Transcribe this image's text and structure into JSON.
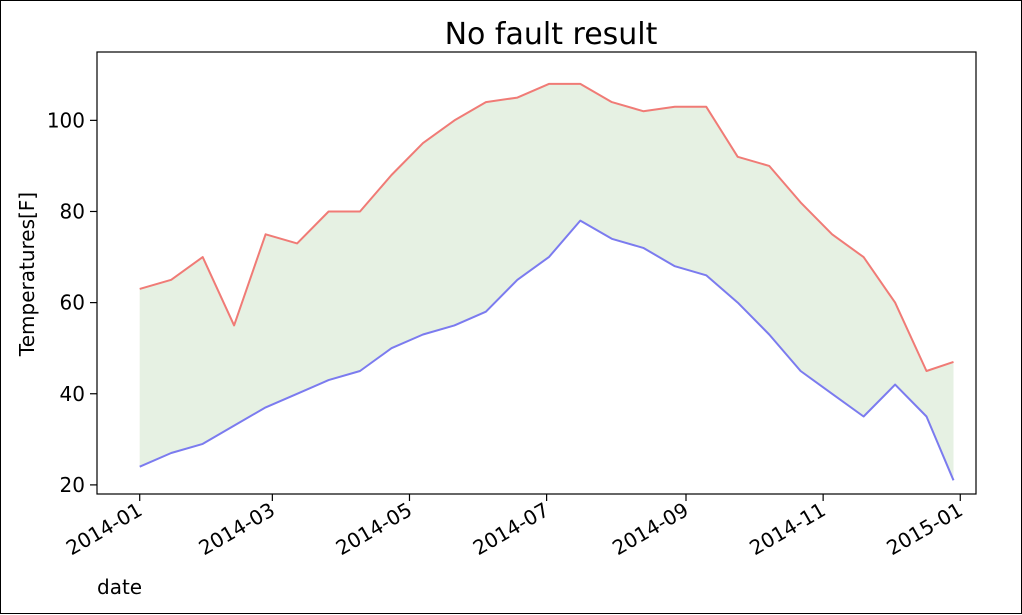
{
  "chart_data": {
    "type": "line",
    "title": "No fault result",
    "xlabel": "date",
    "ylabel": "Temperatures[F]",
    "x_tick_labels": [
      "2014-01",
      "2014-03",
      "2014-05",
      "2014-07",
      "2014-09",
      "2014-11",
      "2015-01"
    ],
    "y_tick_labels": [
      "20",
      "40",
      "60",
      "80",
      "100"
    ],
    "ylim": [
      18,
      115
    ],
    "xlim": [
      "2013-12-13",
      "2015-01-08"
    ],
    "fill_between": {
      "lower": "min",
      "upper": "max",
      "color": "#e6f1e3"
    },
    "series": [
      {
        "color": "#f07b76",
        "x": [
          "2014-01-01",
          "2014-01-15",
          "2014-01-29",
          "2014-02-12",
          "2014-02-26",
          "2014-03-12",
          "2014-03-26",
          "2014-04-09",
          "2014-04-23",
          "2014-05-07",
          "2014-05-21",
          "2014-06-04",
          "2014-06-18",
          "2014-07-02",
          "2014-07-16",
          "2014-07-30",
          "2014-08-13",
          "2014-08-27",
          "2014-09-10",
          "2014-09-24",
          "2014-10-08",
          "2014-10-22",
          "2014-11-05",
          "2014-11-19",
          "2014-12-03",
          "2014-12-17",
          "2014-12-29"
        ],
        "values": [
          63,
          65,
          70,
          55,
          75,
          73,
          80,
          80,
          88,
          95,
          100,
          104,
          105,
          108,
          108,
          104,
          102,
          103,
          103,
          92,
          90,
          82,
          75,
          70,
          60,
          45,
          47
        ]
      },
      {
        "color": "#7b7bef",
        "x": [
          "2014-01-01",
          "2014-01-15",
          "2014-01-29",
          "2014-02-12",
          "2014-02-26",
          "2014-03-12",
          "2014-03-26",
          "2014-04-09",
          "2014-04-23",
          "2014-05-07",
          "2014-05-21",
          "2014-06-04",
          "2014-06-18",
          "2014-07-02",
          "2014-07-16",
          "2014-07-30",
          "2014-08-13",
          "2014-08-27",
          "2014-09-10",
          "2014-09-24",
          "2014-10-08",
          "2014-10-22",
          "2014-11-05",
          "2014-11-19",
          "2014-12-03",
          "2014-12-17",
          "2014-12-29"
        ],
        "values": [
          24,
          27,
          29,
          33,
          37,
          40,
          43,
          45,
          50,
          53,
          55,
          58,
          65,
          70,
          78,
          74,
          72,
          68,
          66,
          60,
          53,
          45,
          40,
          35,
          42,
          35,
          21
        ]
      }
    ]
  }
}
